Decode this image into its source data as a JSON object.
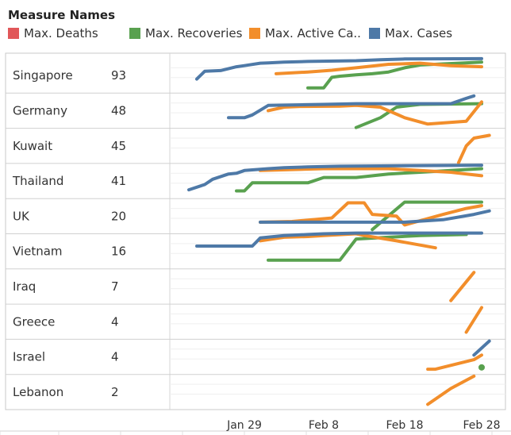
{
  "legend": {
    "title": "Measure Names",
    "items": [
      {
        "label": "Max. Deaths",
        "color": "#e15759"
      },
      {
        "label": "Max. Recoveries",
        "color": "#59a14f"
      },
      {
        "label": "Max. Active Ca..",
        "color": "#f28e2b"
      },
      {
        "label": "Max. Cases",
        "color": "#4e79a7"
      }
    ]
  },
  "chart_data": {
    "type": "line",
    "layout": "small-multiples",
    "x_ticks": [
      "Jan 29",
      "Feb 8",
      "Feb 18",
      "Feb 28"
    ],
    "rows": [
      {
        "country": "Singapore",
        "value": "93",
        "series": {
          "cases": [
            [
              "Jan 23",
              0.4
            ],
            [
              "Jan 24",
              0.62
            ],
            [
              "Jan 26",
              0.64
            ],
            [
              "Jan 28",
              0.75
            ],
            [
              "Jan 29",
              0.78
            ],
            [
              "Jan 31",
              0.85
            ],
            [
              "Feb 1",
              0.86
            ],
            [
              "Feb 3",
              0.88
            ],
            [
              "Feb 6",
              0.9
            ],
            [
              "Feb 12",
              0.92
            ],
            [
              "Feb 15",
              0.95
            ],
            [
              "Feb 18",
              0.97
            ],
            [
              "Feb 28",
              0.98
            ]
          ],
          "active": [
            [
              "Feb 2",
              0.55
            ],
            [
              "Feb 6",
              0.6
            ],
            [
              "Feb 9",
              0.65
            ],
            [
              "Feb 12",
              0.72
            ],
            [
              "Feb 16",
              0.82
            ],
            [
              "Feb 20",
              0.85
            ],
            [
              "Feb 24",
              0.78
            ],
            [
              "Feb 28",
              0.75
            ]
          ],
          "recoveries": [
            [
              "Feb 6",
              0.15
            ],
            [
              "Feb 8",
              0.15
            ],
            [
              "Feb 9",
              0.45
            ],
            [
              "Feb 10",
              0.48
            ],
            [
              "Feb 12",
              0.52
            ],
            [
              "Feb 14",
              0.55
            ],
            [
              "Feb 16",
              0.6
            ],
            [
              "Feb 18",
              0.72
            ],
            [
              "Feb 20",
              0.8
            ],
            [
              "Feb 28",
              0.88
            ]
          ]
        }
      },
      {
        "country": "Germany",
        "value": "48",
        "series": {
          "cases": [
            [
              "Jan 27",
              0.3
            ],
            [
              "Jan 29",
              0.3
            ],
            [
              "Jan 30",
              0.38
            ],
            [
              "Feb 1",
              0.65
            ],
            [
              "Feb 8",
              0.68
            ],
            [
              "Feb 12",
              0.7
            ],
            [
              "Feb 24",
              0.7
            ],
            [
              "Feb 26",
              0.85
            ],
            [
              "Feb 27",
              0.92
            ]
          ],
          "active": [
            [
              "Feb 1",
              0.5
            ],
            [
              "Feb 3",
              0.6
            ],
            [
              "Feb 5",
              0.62
            ],
            [
              "Feb 10",
              0.63
            ],
            [
              "Feb 12",
              0.65
            ],
            [
              "Feb 15",
              0.6
            ],
            [
              "Feb 18",
              0.3
            ],
            [
              "Feb 21",
              0.12
            ],
            [
              "Feb 26",
              0.2
            ],
            [
              "Feb 28",
              0.75
            ]
          ],
          "recoveries": [
            [
              "Feb 12",
              0.02
            ],
            [
              "Feb 15",
              0.3
            ],
            [
              "Feb 17",
              0.6
            ],
            [
              "Feb 20",
              0.68
            ],
            [
              "Feb 28",
              0.7
            ]
          ]
        }
      },
      {
        "country": "Kuwait",
        "value": "45",
        "series": {
          "active": [
            [
              "Feb 25",
              0.02
            ],
            [
              "Feb 26",
              0.5
            ],
            [
              "Feb 27",
              0.72
            ],
            [
              "Feb 29",
              0.8
            ]
          ]
        }
      },
      {
        "country": "Thailand",
        "value": "41",
        "series": {
          "cases": [
            [
              "Jan 22",
              0.25
            ],
            [
              "Jan 24",
              0.4
            ],
            [
              "Jan 25",
              0.55
            ],
            [
              "Jan 27",
              0.7
            ],
            [
              "Jan 28",
              0.72
            ],
            [
              "Jan 29",
              0.8
            ],
            [
              "Feb 1",
              0.85
            ],
            [
              "Feb 3",
              0.88
            ],
            [
              "Feb 6",
              0.9
            ],
            [
              "Feb 10",
              0.92
            ],
            [
              "Feb 15",
              0.93
            ],
            [
              "Feb 20",
              0.94
            ],
            [
              "Feb 28",
              0.95
            ]
          ],
          "recoveries": [
            [
              "Jan 28",
              0.22
            ],
            [
              "Jan 29",
              0.22
            ],
            [
              "Jan 30",
              0.45
            ],
            [
              "Feb 6",
              0.45
            ],
            [
              "Feb 8",
              0.6
            ],
            [
              "Feb 12",
              0.6
            ],
            [
              "Feb 16",
              0.7
            ],
            [
              "Feb 20",
              0.75
            ],
            [
              "Feb 24",
              0.8
            ],
            [
              "Feb 28",
              0.85
            ]
          ],
          "active": [
            [
              "Jan 31",
              0.8
            ],
            [
              "Feb 8",
              0.85
            ],
            [
              "Feb 16",
              0.85
            ],
            [
              "Feb 20",
              0.8
            ],
            [
              "Feb 24",
              0.75
            ],
            [
              "Feb 28",
              0.65
            ]
          ]
        }
      },
      {
        "country": "UK",
        "value": "20",
        "series": {
          "cases": [
            [
              "Jan 31",
              0.33
            ],
            [
              "Feb 12",
              0.33
            ],
            [
              "Feb 13",
              0.33
            ],
            [
              "Feb 18",
              0.33
            ],
            [
              "Feb 23",
              0.4
            ],
            [
              "Feb 27",
              0.55
            ],
            [
              "Feb 29",
              0.65
            ]
          ],
          "active": [
            [
              "Jan 31",
              0.33
            ],
            [
              "Feb 4",
              0.35
            ],
            [
              "Feb 9",
              0.45
            ],
            [
              "Feb 11",
              0.88
            ],
            [
              "Feb 13",
              0.88
            ],
            [
              "Feb 14",
              0.55
            ],
            [
              "Feb 17",
              0.5
            ],
            [
              "Feb 18",
              0.25
            ],
            [
              "Feb 23",
              0.55
            ],
            [
              "Feb 26",
              0.72
            ],
            [
              "Feb 28",
              0.8
            ]
          ],
          "recoveries": [
            [
              "Feb 14",
              0.12
            ],
            [
              "Feb 18",
              0.9
            ],
            [
              "Feb 28",
              0.9
            ]
          ]
        }
      },
      {
        "country": "Vietnam",
        "value": "16",
        "series": {
          "cases": [
            [
              "Jan 23",
              0.65
            ],
            [
              "Jan 27",
              0.65
            ],
            [
              "Jan 30",
              0.65
            ],
            [
              "Jan 31",
              0.88
            ],
            [
              "Feb 3",
              0.95
            ],
            [
              "Feb 6",
              0.98
            ],
            [
              "Feb 8",
              1.0
            ],
            [
              "Feb 12",
              1.02
            ],
            [
              "Feb 28",
              1.02
            ]
          ],
          "active": [
            [
              "Jan 31",
              0.8
            ],
            [
              "Feb 3",
              0.9
            ],
            [
              "Feb 6",
              0.92
            ],
            [
              "Feb 8",
              0.95
            ],
            [
              "Feb 12",
              1.0
            ],
            [
              "Feb 13",
              0.95
            ],
            [
              "Feb 17",
              0.8
            ],
            [
              "Feb 22",
              0.6
            ]
          ],
          "recoveries": [
            [
              "Feb 1",
              0.25
            ],
            [
              "Feb 7",
              0.25
            ],
            [
              "Feb 10",
              0.25
            ],
            [
              "Feb 12",
              0.85
            ],
            [
              "Feb 16",
              0.9
            ],
            [
              "Feb 20",
              0.95
            ],
            [
              "Feb 26",
              0.98
            ]
          ]
        }
      },
      {
        "country": "Iraq",
        "value": "7",
        "series": {
          "active": [
            [
              "Feb 24",
              0.1
            ],
            [
              "Feb 27",
              0.9
            ]
          ]
        }
      },
      {
        "country": "Greece",
        "value": "4",
        "series": {
          "active": [
            [
              "Feb 26",
              0.2
            ],
            [
              "Feb 28",
              0.9
            ]
          ]
        }
      },
      {
        "country": "Israel",
        "value": "4",
        "series": {
          "active": [
            [
              "Feb 21",
              0.15
            ],
            [
              "Feb 22",
              0.15
            ],
            [
              "Feb 27",
              0.42
            ],
            [
              "Feb 28",
              0.55
            ]
          ],
          "cases": [
            [
              "Feb 27",
              0.55
            ],
            [
              "Feb 29",
              0.95
            ]
          ],
          "recoveries": [
            [
              "Feb 28",
              0.2
            ]
          ]
        }
      },
      {
        "country": "Lebanon",
        "value": "2",
        "series": {
          "active": [
            [
              "Feb 21",
              0.15
            ],
            [
              "Feb 24",
              0.6
            ],
            [
              "Feb 27",
              0.95
            ]
          ]
        }
      }
    ]
  }
}
